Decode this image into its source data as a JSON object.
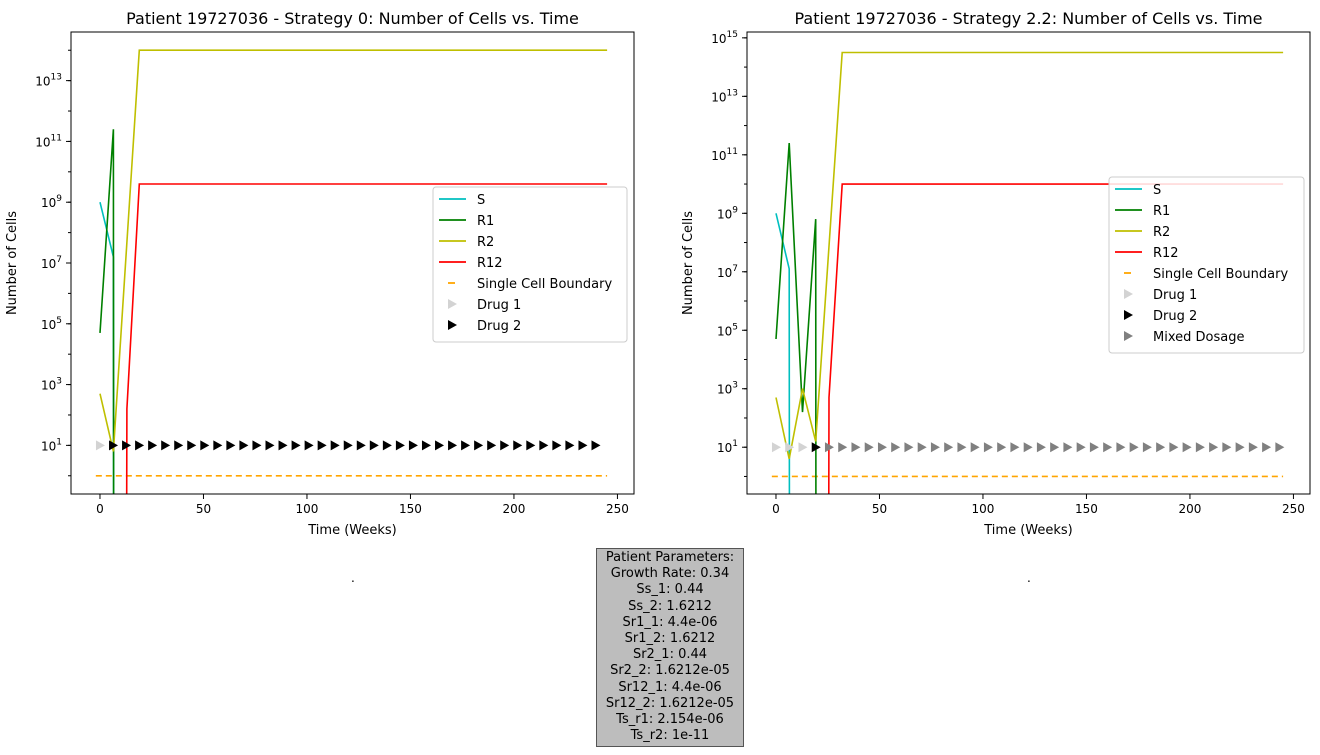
{
  "chart_data": [
    {
      "type": "line",
      "title": "Patient 19727036 - Strategy 0: Number of Cells vs. Time",
      "xlabel": "Time (Weeks)",
      "ylabel": "Number of Cells",
      "yscale": "log",
      "xlim": [
        -14,
        258
      ],
      "ylim_log10": [
        -0.6,
        14.6
      ],
      "xticks": [
        0,
        50,
        100,
        150,
        200,
        250
      ],
      "yticks": [
        {
          "exp": 1,
          "base": "10",
          "power": "1"
        },
        {
          "exp": 3,
          "base": "10",
          "power": "3"
        },
        {
          "exp": 5,
          "base": "10",
          "power": "5"
        },
        {
          "exp": 7,
          "base": "10",
          "power": "7"
        },
        {
          "exp": 9,
          "base": "10",
          "power": "9"
        },
        {
          "exp": 11,
          "base": "10",
          "power": "11"
        },
        {
          "exp": 13,
          "base": "10",
          "power": "13"
        }
      ],
      "legend_position": "center-right",
      "series": [
        {
          "name": "S",
          "color": "#00bfbf",
          "x": [
            0,
            6.5,
            6.6
          ],
          "log10_y": [
            9.0,
            7.2,
            -1
          ]
        },
        {
          "name": "R1",
          "color": "#008000",
          "x": [
            0,
            6.5,
            6.6
          ],
          "log10_y": [
            4.7,
            11.4,
            -1
          ]
        },
        {
          "name": "R2",
          "color": "#bfbf00",
          "x": [
            0,
            6.5,
            19,
            245
          ],
          "log10_y": [
            2.7,
            0.8,
            14.0,
            14.0
          ]
        },
        {
          "name": "R12",
          "color": "#ff0000",
          "x": [
            12.9,
            13,
            19,
            245
          ],
          "log10_y": [
            -1,
            2.2,
            9.6,
            9.6
          ]
        }
      ],
      "boundary": {
        "name": "Single Cell Boundary",
        "color": "#ffa500",
        "x": [
          -2,
          245
        ],
        "log10_y": 0
      },
      "markers": [
        {
          "name": "Drug 1",
          "color": "#d3d3d3",
          "x": [
            0
          ]
        },
        {
          "name": "Drug 2",
          "color": "#000000",
          "x": [
            6.3,
            12.6,
            18.9,
            25.2,
            31.5,
            37.8,
            44.1,
            50.4,
            56.7,
            63,
            69.3,
            75.6,
            81.9,
            88.2,
            94.5,
            100.8,
            107.1,
            113.4,
            119.7,
            126,
            132.3,
            138.6,
            144.9,
            151.2,
            157.5,
            163.8,
            170.1,
            176.4,
            182.7,
            189,
            195.3,
            201.6,
            207.9,
            214.2,
            220.5,
            226.8,
            233.1,
            239.4
          ]
        }
      ],
      "marker_log10_y": 1
    },
    {
      "type": "line",
      "title": "Patient 19727036 - Strategy 2.2: Number of Cells vs. Time",
      "xlabel": "Time (Weeks)",
      "ylabel": "Number of Cells",
      "yscale": "log",
      "xlim": [
        -14,
        258
      ],
      "ylim_log10": [
        -0.6,
        15.2
      ],
      "xticks": [
        0,
        50,
        100,
        150,
        200,
        250
      ],
      "yticks": [
        {
          "exp": 1,
          "base": "10",
          "power": "1"
        },
        {
          "exp": 3,
          "base": "10",
          "power": "3"
        },
        {
          "exp": 5,
          "base": "10",
          "power": "5"
        },
        {
          "exp": 7,
          "base": "10",
          "power": "7"
        },
        {
          "exp": 9,
          "base": "10",
          "power": "9"
        },
        {
          "exp": 11,
          "base": "10",
          "power": "11"
        },
        {
          "exp": 13,
          "base": "10",
          "power": "13"
        },
        {
          "exp": 15,
          "base": "10",
          "power": "15"
        }
      ],
      "legend_position": "center-right",
      "series": [
        {
          "name": "S",
          "color": "#00bfbf",
          "x": [
            0,
            6.4,
            6.5
          ],
          "log10_y": [
            9.0,
            7.1,
            -1
          ]
        },
        {
          "name": "R1",
          "color": "#008000",
          "x": [
            0,
            6.4,
            12.8,
            19.2,
            19.3
          ],
          "log10_y": [
            4.7,
            11.4,
            2.2,
            8.8,
            -1
          ]
        },
        {
          "name": "R2",
          "color": "#bfbf00",
          "x": [
            0,
            6.4,
            12.8,
            19.2,
            32,
            245
          ],
          "log10_y": [
            2.7,
            0.6,
            3.0,
            1.2,
            14.5,
            14.5
          ]
        },
        {
          "name": "R12",
          "color": "#ff0000",
          "x": [
            25.5,
            25.6,
            32,
            245
          ],
          "log10_y": [
            -1,
            2.7,
            10.0,
            10.0
          ]
        }
      ],
      "boundary": {
        "name": "Single Cell Boundary",
        "color": "#ffa500",
        "x": [
          -2,
          245
        ],
        "log10_y": 0
      },
      "markers": [
        {
          "name": "Drug 1",
          "color": "#d3d3d3",
          "x": [
            0,
            6.4,
            12.8
          ]
        },
        {
          "name": "Drug 2",
          "color": "#000000",
          "x": [
            19.2
          ]
        },
        {
          "name": "Mixed Dosage",
          "color": "#808080",
          "x": [
            25.6,
            32,
            38.4,
            44.8,
            51.2,
            57.6,
            64,
            70.4,
            76.8,
            83.2,
            89.6,
            96,
            102.4,
            108.8,
            115.2,
            121.6,
            128,
            134.4,
            140.8,
            147.2,
            153.6,
            160,
            166.4,
            172.8,
            179.2,
            185.6,
            192,
            198.4,
            204.8,
            211.2,
            217.6,
            224,
            230.4,
            236.8,
            243.2
          ]
        }
      ],
      "marker_log10_y": 1
    }
  ],
  "stray_labels": [
    ".",
    "."
  ],
  "parameters": {
    "title": "Patient Parameters:",
    "lines": [
      "Growth Rate: 0.34",
      "Ss_1: 0.44",
      "Ss_2: 1.6212",
      "Sr1_1: 4.4e-06",
      "Sr1_2: 1.6212",
      "Sr2_1: 0.44",
      "Sr2_2: 1.6212e-05",
      "Sr12_1: 4.4e-06",
      "Sr12_2: 1.6212e-05",
      "Ts_r1: 2.154e-06",
      "Ts_r2: 1e-11"
    ]
  }
}
